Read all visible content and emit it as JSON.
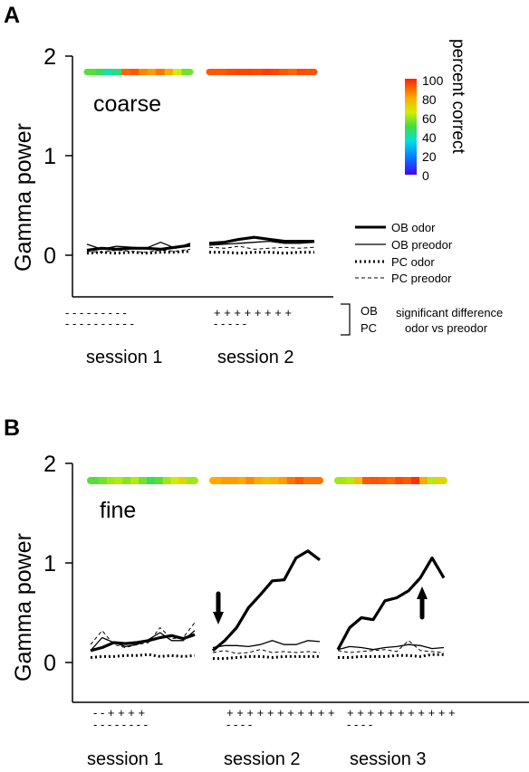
{
  "figure": {
    "colorbar": {
      "title": "percent correct",
      "ticks": [
        "100",
        "80",
        "60",
        "40",
        "20",
        "0"
      ]
    },
    "legend": {
      "items": [
        {
          "label": "OB odor",
          "style": "thick-solid"
        },
        {
          "label": "OB preodor",
          "style": "thin-solid"
        },
        {
          "label": "PC odor",
          "style": "thick-dotted"
        },
        {
          "label": "PC preodor",
          "style": "thin-dashed"
        }
      ]
    },
    "significance": {
      "row_labels": [
        "OB",
        "PC"
      ],
      "note_line1": "significant difference",
      "note_line2": "odor vs preodor"
    }
  },
  "chart_data": [
    {
      "panel": "A",
      "type": "line",
      "inset_label": "coarse",
      "ylabel": "Gamma power",
      "ylim": [
        0,
        2
      ],
      "yticks": [
        "0",
        "1",
        "2"
      ],
      "sessions": [
        "session 1",
        "session 2"
      ],
      "series": [
        {
          "name": "OB odor",
          "values": [
            [
              0.05,
              0.07,
              0.06,
              0.07,
              0.07,
              0.06,
              0.08,
              0.1
            ],
            [
              0.12,
              0.13,
              0.16,
              0.18,
              0.16,
              0.14,
              0.14,
              0.14
            ]
          ]
        },
        {
          "name": "OB preodor",
          "values": [
            [
              0.11,
              0.06,
              0.09,
              0.08,
              0.07,
              0.13,
              0.07,
              0.12
            ],
            [
              0.1,
              0.11,
              0.12,
              0.13,
              0.14,
              0.12,
              0.12,
              0.13
            ]
          ]
        },
        {
          "name": "PC odor",
          "values": [
            [
              0.02,
              0.03,
              0.02,
              0.03,
              0.02,
              0.03,
              0.03,
              0.04
            ],
            [
              0.03,
              0.03,
              0.02,
              0.03,
              0.03,
              0.02,
              0.03,
              0.03
            ]
          ]
        },
        {
          "name": "PC preodor",
          "values": [
            [
              0.04,
              0.03,
              0.05,
              0.04,
              0.03,
              0.05,
              0.04,
              0.06
            ],
            [
              0.08,
              0.07,
              0.09,
              0.06,
              0.07,
              0.08,
              0.07,
              0.08
            ]
          ]
        }
      ],
      "percent_correct": [
        [
          52,
          48,
          40,
          45,
          90,
          92,
          85,
          82,
          88,
          80,
          65,
          55
        ],
        [
          92,
          92,
          94,
          95,
          95,
          94,
          96,
          95,
          92,
          90,
          94,
          93
        ]
      ],
      "significance": {
        "OB": [
          "- -  - - - - - - -",
          "+ +   + +   + + + +"
        ],
        "PC": [
          "- - - - - - - - - -",
          "-   -   -   - -"
        ]
      }
    },
    {
      "panel": "B",
      "type": "line",
      "inset_label": "fine",
      "ylabel": "Gamma power",
      "ylim": [
        0,
        2
      ],
      "yticks": [
        "0",
        "1",
        "2"
      ],
      "sessions": [
        "session 1",
        "session 2",
        "session 3"
      ],
      "series": [
        {
          "name": "OB odor",
          "values": [
            [
              0.12,
              0.15,
              0.2,
              0.19,
              0.2,
              0.22,
              0.25,
              0.27,
              0.24,
              0.28
            ],
            [
              0.12,
              0.22,
              0.35,
              0.55,
              0.68,
              0.82,
              0.83,
              1.05,
              1.12,
              1.03
            ],
            [
              0.13,
              0.35,
              0.45,
              0.43,
              0.62,
              0.65,
              0.72,
              0.85,
              1.05,
              0.85
            ]
          ]
        },
        {
          "name": "OB preodor",
          "values": [
            [
              0.12,
              0.25,
              0.2,
              0.16,
              0.18,
              0.23,
              0.3,
              0.22,
              0.22,
              0.32
            ],
            [
              0.15,
              0.17,
              0.17,
              0.16,
              0.18,
              0.22,
              0.18,
              0.18,
              0.22,
              0.21
            ],
            [
              0.13,
              0.16,
              0.15,
              0.13,
              0.15,
              0.16,
              0.18,
              0.17,
              0.14,
              0.15
            ]
          ]
        },
        {
          "name": "PC odor",
          "values": [
            [
              0.05,
              0.06,
              0.06,
              0.07,
              0.07,
              0.08,
              0.06,
              0.07,
              0.06,
              0.07
            ],
            [
              0.04,
              0.04,
              0.05,
              0.06,
              0.06,
              0.05,
              0.06,
              0.06,
              0.06,
              0.06
            ],
            [
              0.05,
              0.05,
              0.06,
              0.06,
              0.06,
              0.07,
              0.07,
              0.06,
              0.08,
              0.08
            ]
          ]
        },
        {
          "name": "PC preodor",
          "values": [
            [
              0.18,
              0.32,
              0.18,
              0.15,
              0.18,
              0.2,
              0.35,
              0.24,
              0.25,
              0.4
            ],
            [
              0.1,
              0.12,
              0.09,
              0.1,
              0.13,
              0.1,
              0.11,
              0.1,
              0.11,
              0.1
            ],
            [
              0.12,
              0.1,
              0.11,
              0.12,
              0.13,
              0.11,
              0.22,
              0.12,
              0.11,
              0.1
            ]
          ]
        }
      ],
      "percent_correct": [
        [
          52,
          55,
          60,
          62,
          57,
          62,
          55,
          48,
          52,
          60,
          65,
          70,
          60
        ],
        [
          80,
          82,
          82,
          80,
          85,
          80,
          76,
          78,
          82,
          88,
          92,
          88,
          88
        ],
        [
          60,
          62,
          75,
          92,
          93,
          92,
          90,
          94,
          92,
          98,
          80,
          62,
          70
        ]
      ],
      "arrows": [
        {
          "session": 2,
          "direction": "down"
        },
        {
          "session": 3,
          "direction": "up"
        }
      ],
      "significance": {
        "OB": [
          "- -        + + +      +",
          "+ + + + + + + + + + +",
          "+ + + + + + + + + + +"
        ],
        "PC": [
          "- - - -              - - - -",
          "- - -                -",
          "- -              - -"
        ]
      }
    }
  ]
}
